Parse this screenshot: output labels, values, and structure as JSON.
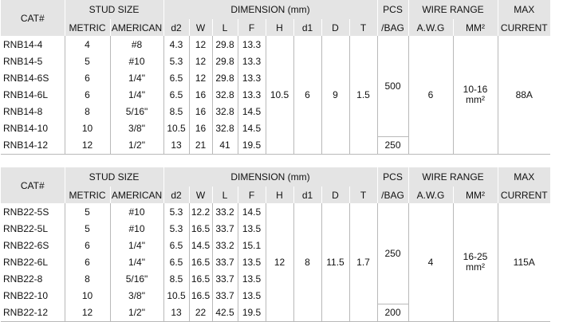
{
  "header": {
    "cat": "CAT#",
    "stud_size": "STUD SIZE",
    "dimension": "DIMENSION (mm)",
    "pcs": "PCS",
    "bag": "/BAG",
    "wire_range": "WIRE RANGE",
    "max": "MAX",
    "current": "CURRENT",
    "metric": "METRIC",
    "american": "AMERICAN",
    "d2": "d2",
    "w": "W",
    "l": "L",
    "f": "F",
    "h": "H",
    "d1": "d1",
    "d": "D",
    "t": "T",
    "awg": "A.W.G",
    "mm2": "MM²"
  },
  "tables": [
    {
      "rows": [
        {
          "cat": "RNB14-4",
          "metric": "4",
          "american": "#8",
          "d2": "4.3",
          "w": "12",
          "l": "29.8",
          "f": "13.3"
        },
        {
          "cat": "RNB14-5",
          "metric": "5",
          "american": "#10",
          "d2": "5.3",
          "w": "12",
          "l": "29.8",
          "f": "13.3"
        },
        {
          "cat": "RNB14-6S",
          "metric": "6",
          "american": "1/4\"",
          "d2": "6.5",
          "w": "12",
          "l": "29.8",
          "f": "13.3"
        },
        {
          "cat": "RNB14-6L",
          "metric": "6",
          "american": "1/4\"",
          "d2": "6.5",
          "w": "16",
          "l": "32.8",
          "f": "13.3"
        },
        {
          "cat": "RNB14-8",
          "metric": "8",
          "american": "5/16\"",
          "d2": "8.5",
          "w": "16",
          "l": "32.8",
          "f": "14.5"
        },
        {
          "cat": "RNB14-10",
          "metric": "10",
          "american": "3/8\"",
          "d2": "10.5",
          "w": "16",
          "l": "32.8",
          "f": "14.5"
        },
        {
          "cat": "RNB14-12",
          "metric": "12",
          "american": "1/2\"",
          "d2": "13",
          "w": "21",
          "l": "41",
          "f": "19.5"
        }
      ],
      "shared": {
        "h": "10.5",
        "d1": "6",
        "d": "9",
        "t": "1.5",
        "pcs_main": "500",
        "pcs_last": "250",
        "awg": "6",
        "mm2_range": "10-16",
        "mm2_unit": "mm²",
        "current": "88A"
      }
    },
    {
      "rows": [
        {
          "cat": "RNB22-5S",
          "metric": "5",
          "american": "#10",
          "d2": "5.3",
          "w": "12.2",
          "l": "33.2",
          "f": "14.5"
        },
        {
          "cat": "RNB22-5L",
          "metric": "5",
          "american": "#10",
          "d2": "5.3",
          "w": "16.5",
          "l": "33.7",
          "f": "13.5"
        },
        {
          "cat": "RNB22-6S",
          "metric": "6",
          "american": "1/4\"",
          "d2": "6.5",
          "w": "14.5",
          "l": "33.2",
          "f": "15.1"
        },
        {
          "cat": "RNB22-6L",
          "metric": "6",
          "american": "1/4\"",
          "d2": "6.5",
          "w": "16.5",
          "l": "33.7",
          "f": "13.5"
        },
        {
          "cat": "RNB22-8",
          "metric": "8",
          "american": "5/16\"",
          "d2": "8.5",
          "w": "16.5",
          "l": "33.7",
          "f": "13.5"
        },
        {
          "cat": "RNB22-10",
          "metric": "10",
          "american": "3/8\"",
          "d2": "10.5",
          "w": "16.5",
          "l": "33.7",
          "f": "13.5"
        },
        {
          "cat": "RNB22-12",
          "metric": "12",
          "american": "1/2\"",
          "d2": "13",
          "w": "22",
          "l": "42.5",
          "f": "19.5"
        }
      ],
      "shared": {
        "h": "12",
        "d1": "8",
        "d": "11.5",
        "t": "1.7",
        "pcs_main": "250",
        "pcs_last": "200",
        "awg": "4",
        "mm2_range": "16-25",
        "mm2_unit": "mm²",
        "current": "115A"
      }
    }
  ]
}
